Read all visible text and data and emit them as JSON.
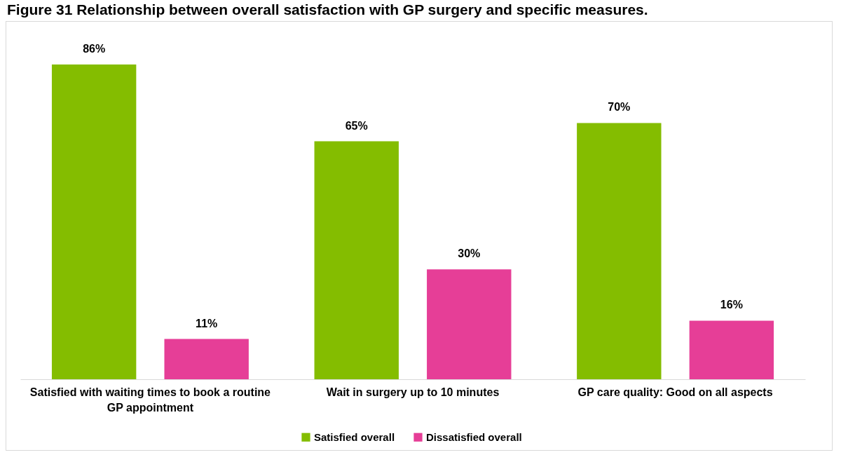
{
  "chart_data": {
    "type": "bar",
    "title": "Figure 31 Relationship between overall satisfaction with GP surgery and specific measures.",
    "categories": [
      "Satisfied with waiting times to book a routine GP appointment",
      "Wait in surgery up to 10 minutes",
      "GP care quality: Good on all aspects"
    ],
    "series": [
      {
        "name": "Satisfied overall",
        "color": "#84bd00",
        "values": [
          86,
          65,
          70
        ],
        "value_labels": [
          "86%",
          "65%",
          "70%"
        ]
      },
      {
        "name": "Dissatisfied overall",
        "color": "#e63e97",
        "values": [
          11,
          30,
          16
        ],
        "value_labels": [
          "11%",
          "30%",
          "16%"
        ]
      }
    ],
    "legend": "bottom",
    "grid": false
  }
}
